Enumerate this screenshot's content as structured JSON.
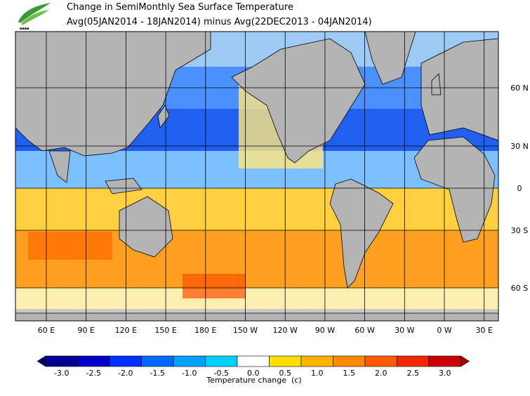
{
  "header": {
    "title": "Change in SemiMonthly Sea Surface Temperature",
    "subtitle": "Avg(05JAN2014 - 18JAN2014) minus Avg(22DEC2013 - 04JAN2014)"
  },
  "map": {
    "lat_labels": [
      "60 N",
      "30 N",
      "0",
      "30 S",
      "60 S"
    ],
    "lon_labels": [
      "60 E",
      "90 E",
      "120 E",
      "150 E",
      "180 E",
      "150 W",
      "120 W",
      "90 W",
      "60 W",
      "30 W",
      "0 W",
      "30 E"
    ]
  },
  "colorbar": {
    "title": "Temperature change  (c)",
    "ticks": [
      {
        "value": -3,
        "label": "-3.0"
      },
      {
        "value": -2.5,
        "label": "-2.5"
      },
      {
        "value": -2,
        "label": "-2.0"
      },
      {
        "value": -1.5,
        "label": "-1.5"
      },
      {
        "value": -1,
        "label": "-1.0"
      },
      {
        "value": -0.5,
        "label": "-0.5"
      },
      {
        "value": 0,
        "label": "0.0"
      },
      {
        "value": 0.5,
        "label": "0.5"
      },
      {
        "value": 1,
        "label": "1.0"
      },
      {
        "value": 1.5,
        "label": "1.5"
      },
      {
        "value": 2,
        "label": "2.0"
      },
      {
        "value": 2.5,
        "label": "2.5"
      },
      {
        "value": 3,
        "label": "3.0"
      }
    ],
    "colors": [
      "#000090",
      "#0000c8",
      "#0030ff",
      "#0068ff",
      "#00a0ff",
      "#00d0ff",
      "#ffffff",
      "#ffe000",
      "#ffb400",
      "#ff8a00",
      "#ff5a00",
      "#f02800",
      "#c80000"
    ],
    "under_color": "#000060",
    "over_color": "#a00000"
  }
}
